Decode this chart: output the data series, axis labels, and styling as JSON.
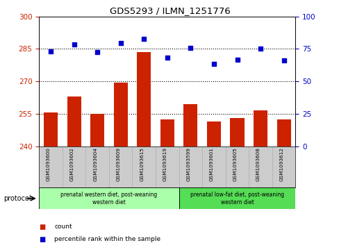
{
  "title": "GDS5293 / ILMN_1251776",
  "samples": [
    "GSM1093600",
    "GSM1093602",
    "GSM1093604",
    "GSM1093609",
    "GSM1093615",
    "GSM1093619",
    "GSM1093599",
    "GSM1093601",
    "GSM1093605",
    "GSM1093608",
    "GSM1093612"
  ],
  "bar_values": [
    255.5,
    263.0,
    255.0,
    269.5,
    283.5,
    252.5,
    259.5,
    251.5,
    253.0,
    256.5,
    252.5
  ],
  "dot_values": [
    73.0,
    78.5,
    72.5,
    79.5,
    82.5,
    68.0,
    75.5,
    63.5,
    66.5,
    75.0,
    66.0
  ],
  "bar_color": "#cc2200",
  "dot_color": "#0000cc",
  "bar_bottom": 240,
  "ylim_left": [
    240,
    300
  ],
  "ylim_right": [
    0,
    100
  ],
  "yticks_left": [
    240,
    255,
    270,
    285,
    300
  ],
  "yticks_right": [
    0,
    25,
    50,
    75,
    100
  ],
  "hlines": [
    255,
    270,
    285
  ],
  "group1_label": "prenatal western diet, post-weaning\nwestern diet",
  "group2_label": "prenatal low-fat diet, post-weaning\nwestern diet",
  "group1_count": 6,
  "group2_count": 5,
  "protocol_label": "protocol",
  "legend_bar": "count",
  "legend_dot": "percentile rank within the sample",
  "bg_color": "#ffffff",
  "plot_bg": "#ffffff",
  "tick_label_color_left": "#cc2200",
  "tick_label_color_right": "#0000cc",
  "group1_color": "#aaffaa",
  "group2_color": "#55dd55",
  "sample_bg": "#cccccc"
}
